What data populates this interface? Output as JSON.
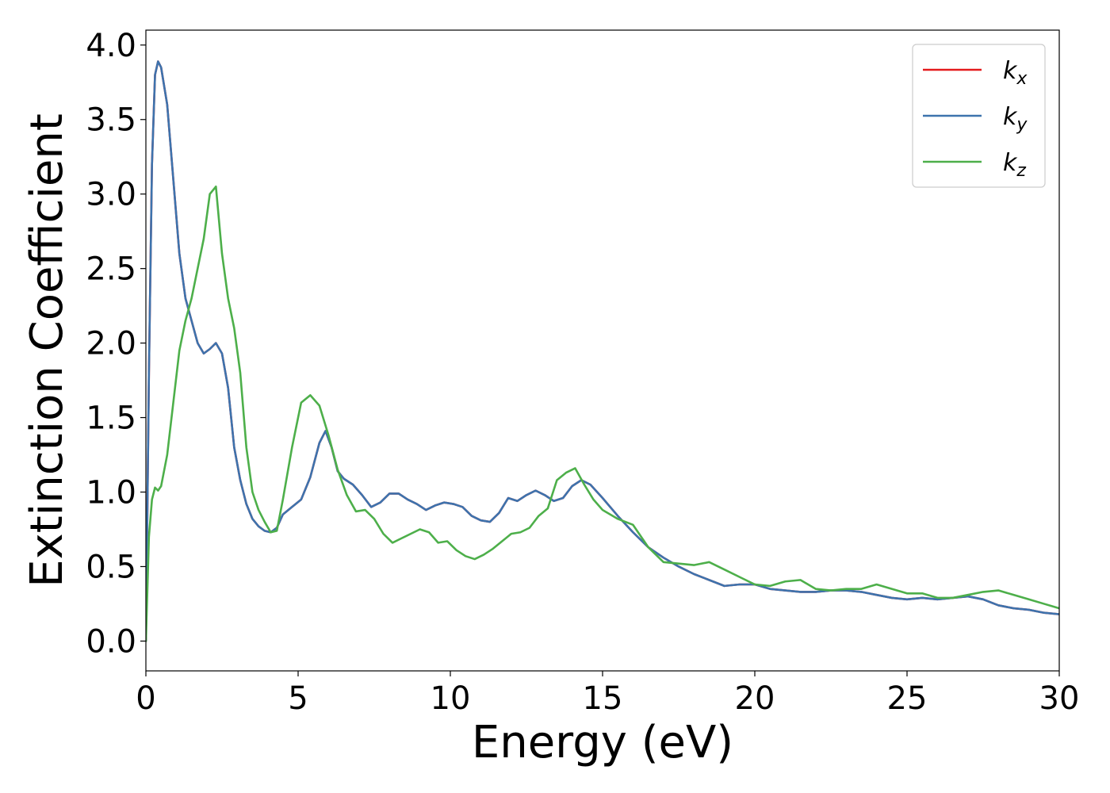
{
  "chart_data": {
    "type": "line",
    "title": "",
    "xlabel": "Energy (eV)",
    "ylabel": "Extinction Coefficient",
    "xlim": [
      0,
      30
    ],
    "ylim": [
      -0.2,
      4.1
    ],
    "xticks": [
      0,
      5,
      10,
      15,
      20,
      25,
      30
    ],
    "yticks": [
      0.0,
      0.5,
      1.0,
      1.5,
      2.0,
      2.5,
      3.0,
      3.5,
      4.0
    ],
    "xtick_labels": [
      "0",
      "5",
      "10",
      "15",
      "20",
      "25",
      "30"
    ],
    "ytick_labels": [
      "0.0",
      "0.5",
      "1.0",
      "1.5",
      "2.0",
      "2.5",
      "3.0",
      "3.5",
      "4.0"
    ],
    "grid": false,
    "legend_position": "top-right",
    "series": [
      {
        "name": "k_x",
        "label_main": "k",
        "label_sub": "x",
        "color": "#e41a1c",
        "x": [
          0,
          0.1,
          0.2,
          0.3,
          0.4,
          0.5,
          0.7,
          0.9,
          1.1,
          1.3,
          1.5,
          1.7,
          1.9,
          2.1,
          2.3,
          2.5,
          2.7,
          2.9,
          3.1,
          3.3,
          3.5,
          3.7,
          3.9,
          4.1,
          4.3,
          4.5,
          4.8,
          5.1,
          5.4,
          5.7,
          5.9,
          6.1,
          6.3,
          6.5,
          6.8,
          7.1,
          7.4,
          7.7,
          8.0,
          8.3,
          8.6,
          8.9,
          9.2,
          9.5,
          9.8,
          10.1,
          10.4,
          10.7,
          11.0,
          11.3,
          11.6,
          11.9,
          12.2,
          12.5,
          12.8,
          13.1,
          13.4,
          13.7,
          14.0,
          14.3,
          14.6,
          15.0,
          15.5,
          16.0,
          16.5,
          17.0,
          17.5,
          18.0,
          18.5,
          19.0,
          19.5,
          20.0,
          20.5,
          21.0,
          21.5,
          22.0,
          22.5,
          23.0,
          23.5,
          24.0,
          24.5,
          25.0,
          25.5,
          26.0,
          26.5,
          27.0,
          27.5,
          28.0,
          28.5,
          29.0,
          29.5,
          30.0
        ],
        "y": [
          0.0,
          1.8,
          3.2,
          3.8,
          3.89,
          3.85,
          3.6,
          3.1,
          2.6,
          2.3,
          2.15,
          2.0,
          1.93,
          1.96,
          2.0,
          1.93,
          1.7,
          1.3,
          1.08,
          0.92,
          0.82,
          0.77,
          0.74,
          0.73,
          0.76,
          0.85,
          0.9,
          0.95,
          1.1,
          1.33,
          1.41,
          1.3,
          1.14,
          1.09,
          1.05,
          0.98,
          0.9,
          0.93,
          0.99,
          0.99,
          0.95,
          0.92,
          0.88,
          0.91,
          0.93,
          0.92,
          0.9,
          0.84,
          0.81,
          0.8,
          0.86,
          0.96,
          0.94,
          0.98,
          1.01,
          0.98,
          0.94,
          0.96,
          1.04,
          1.08,
          1.05,
          0.96,
          0.84,
          0.73,
          0.63,
          0.56,
          0.5,
          0.45,
          0.41,
          0.37,
          0.38,
          0.38,
          0.35,
          0.34,
          0.33,
          0.33,
          0.34,
          0.34,
          0.33,
          0.31,
          0.29,
          0.28,
          0.29,
          0.28,
          0.29,
          0.3,
          0.28,
          0.24,
          0.22,
          0.21,
          0.19,
          0.18
        ]
      },
      {
        "name": "k_y",
        "label_main": "k",
        "label_sub": "y",
        "color": "#3d73ad",
        "x": [
          0,
          0.1,
          0.2,
          0.3,
          0.4,
          0.5,
          0.7,
          0.9,
          1.1,
          1.3,
          1.5,
          1.7,
          1.9,
          2.1,
          2.3,
          2.5,
          2.7,
          2.9,
          3.1,
          3.3,
          3.5,
          3.7,
          3.9,
          4.1,
          4.3,
          4.5,
          4.8,
          5.1,
          5.4,
          5.7,
          5.9,
          6.1,
          6.3,
          6.5,
          6.8,
          7.1,
          7.4,
          7.7,
          8.0,
          8.3,
          8.6,
          8.9,
          9.2,
          9.5,
          9.8,
          10.1,
          10.4,
          10.7,
          11.0,
          11.3,
          11.6,
          11.9,
          12.2,
          12.5,
          12.8,
          13.1,
          13.4,
          13.7,
          14.0,
          14.3,
          14.6,
          15.0,
          15.5,
          16.0,
          16.5,
          17.0,
          17.5,
          18.0,
          18.5,
          19.0,
          19.5,
          20.0,
          20.5,
          21.0,
          21.5,
          22.0,
          22.5,
          23.0,
          23.5,
          24.0,
          24.5,
          25.0,
          25.5,
          26.0,
          26.5,
          27.0,
          27.5,
          28.0,
          28.5,
          29.0,
          29.5,
          30.0
        ],
        "y": [
          0.0,
          1.8,
          3.2,
          3.8,
          3.89,
          3.85,
          3.6,
          3.1,
          2.6,
          2.3,
          2.15,
          2.0,
          1.93,
          1.96,
          2.0,
          1.93,
          1.7,
          1.3,
          1.08,
          0.92,
          0.82,
          0.77,
          0.74,
          0.73,
          0.76,
          0.85,
          0.9,
          0.95,
          1.1,
          1.33,
          1.41,
          1.3,
          1.14,
          1.09,
          1.05,
          0.98,
          0.9,
          0.93,
          0.99,
          0.99,
          0.95,
          0.92,
          0.88,
          0.91,
          0.93,
          0.92,
          0.9,
          0.84,
          0.81,
          0.8,
          0.86,
          0.96,
          0.94,
          0.98,
          1.01,
          0.98,
          0.94,
          0.96,
          1.04,
          1.08,
          1.05,
          0.96,
          0.84,
          0.73,
          0.63,
          0.56,
          0.5,
          0.45,
          0.41,
          0.37,
          0.38,
          0.38,
          0.35,
          0.34,
          0.33,
          0.33,
          0.34,
          0.34,
          0.33,
          0.31,
          0.29,
          0.28,
          0.29,
          0.28,
          0.29,
          0.3,
          0.28,
          0.24,
          0.22,
          0.21,
          0.19,
          0.18
        ]
      },
      {
        "name": "k_z",
        "label_main": "k",
        "label_sub": "z",
        "color": "#4daf4a",
        "x": [
          0,
          0.1,
          0.2,
          0.3,
          0.4,
          0.5,
          0.7,
          0.9,
          1.1,
          1.3,
          1.5,
          1.7,
          1.9,
          2.1,
          2.3,
          2.5,
          2.7,
          2.9,
          3.1,
          3.3,
          3.5,
          3.7,
          3.9,
          4.1,
          4.3,
          4.5,
          4.8,
          5.1,
          5.4,
          5.7,
          6.0,
          6.3,
          6.6,
          6.9,
          7.2,
          7.5,
          7.8,
          8.1,
          8.4,
          8.7,
          9.0,
          9.3,
          9.6,
          9.9,
          10.2,
          10.5,
          10.8,
          11.1,
          11.4,
          11.7,
          12.0,
          12.3,
          12.6,
          12.9,
          13.2,
          13.5,
          13.8,
          14.1,
          14.4,
          14.7,
          15.0,
          15.5,
          16.0,
          16.5,
          17.0,
          17.5,
          18.0,
          18.5,
          19.0,
          19.5,
          20.0,
          20.5,
          21.0,
          21.5,
          22.0,
          22.5,
          23.0,
          23.5,
          24.0,
          24.5,
          25.0,
          25.5,
          26.0,
          26.5,
          27.0,
          27.5,
          28.0,
          28.5,
          29.0,
          29.5,
          30.0
        ],
        "y": [
          0.0,
          0.7,
          0.95,
          1.03,
          1.01,
          1.04,
          1.25,
          1.6,
          1.95,
          2.15,
          2.3,
          2.5,
          2.7,
          3.0,
          3.05,
          2.6,
          2.3,
          2.1,
          1.8,
          1.3,
          1.0,
          0.88,
          0.8,
          0.73,
          0.74,
          0.95,
          1.3,
          1.6,
          1.65,
          1.58,
          1.38,
          1.15,
          0.98,
          0.87,
          0.88,
          0.82,
          0.72,
          0.66,
          0.69,
          0.72,
          0.75,
          0.73,
          0.66,
          0.67,
          0.61,
          0.57,
          0.55,
          0.58,
          0.62,
          0.67,
          0.72,
          0.73,
          0.76,
          0.84,
          0.89,
          1.08,
          1.13,
          1.16,
          1.05,
          0.95,
          0.88,
          0.82,
          0.78,
          0.63,
          0.53,
          0.52,
          0.51,
          0.53,
          0.48,
          0.43,
          0.38,
          0.37,
          0.4,
          0.41,
          0.35,
          0.34,
          0.35,
          0.35,
          0.38,
          0.35,
          0.32,
          0.32,
          0.29,
          0.29,
          0.31,
          0.33,
          0.34,
          0.31,
          0.28,
          0.25,
          0.22
        ]
      }
    ]
  }
}
